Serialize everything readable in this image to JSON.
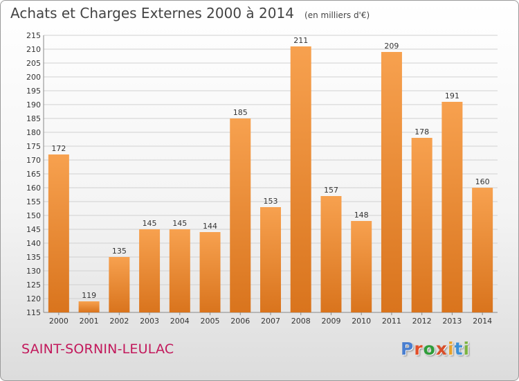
{
  "header": {
    "title": "Achats et Charges Externes 2000 à 2014",
    "unit": "(en milliers d'€)"
  },
  "footer": {
    "city": "SAINT-SORNIN-LEULAC",
    "logo": "Proxiti"
  },
  "colors": {
    "bar_top": "#f7a14f",
    "bar_bottom": "#d9741d",
    "city": "#c2185b",
    "logo_letters": [
      "#4a7fd0",
      "#e2502b",
      "#2f9d3a",
      "#d84e2a",
      "#e8a22a",
      "#3b8fd6",
      "#7cb342"
    ]
  },
  "chart_data": {
    "type": "bar",
    "categories": [
      "2000",
      "2001",
      "2002",
      "2003",
      "2004",
      "2005",
      "2006",
      "2007",
      "2008",
      "2009",
      "2010",
      "2011",
      "2012",
      "2013",
      "2014"
    ],
    "values": [
      172,
      119,
      135,
      145,
      145,
      144,
      185,
      153,
      211,
      157,
      148,
      209,
      178,
      191,
      160
    ],
    "title": "Achats et Charges Externes 2000 à 2014",
    "ylim": [
      115,
      215
    ],
    "yticks": [
      115,
      120,
      125,
      130,
      135,
      140,
      145,
      150,
      155,
      160,
      165,
      170,
      175,
      180,
      185,
      190,
      195,
      200,
      205,
      210,
      215
    ],
    "grid": true
  }
}
